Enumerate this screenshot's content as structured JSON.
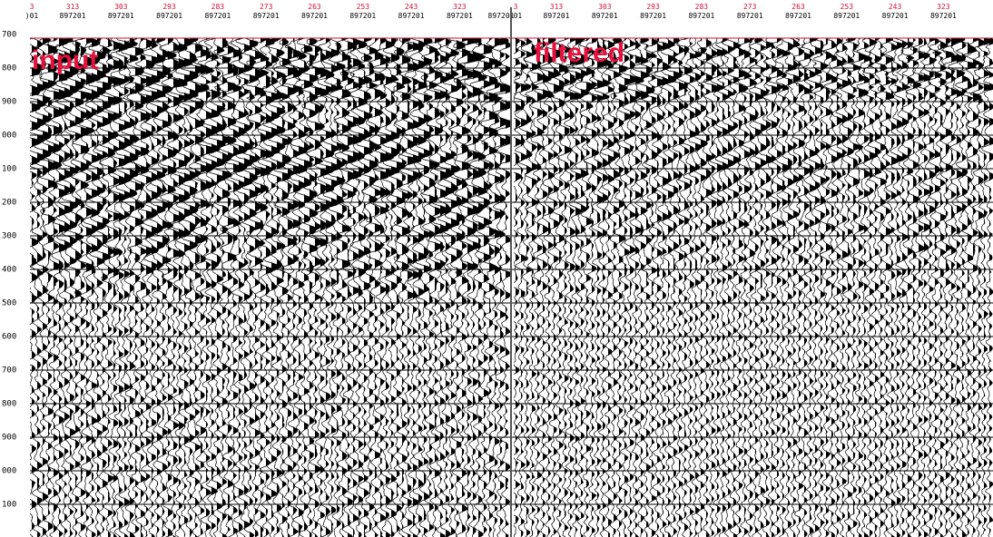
{
  "panels": [
    {
      "label": "input",
      "traces": [
        {
          "number": "3",
          "id": ")01"
        },
        {
          "number": "313",
          "id": "897201"
        },
        {
          "number": "303",
          "id": "897201"
        },
        {
          "number": "293",
          "id": "897201"
        },
        {
          "number": "283",
          "id": "897201"
        },
        {
          "number": "273",
          "id": "897201"
        },
        {
          "number": "263",
          "id": "897201"
        },
        {
          "number": "253",
          "id": "897201"
        },
        {
          "number": "243",
          "id": "897201"
        },
        {
          "number": "323",
          "id": "897201"
        }
      ]
    },
    {
      "label": "filtered",
      "traces": [
        {
          "number": "3",
          "id": ")01"
        },
        {
          "number": "313",
          "id": "897201"
        },
        {
          "number": "303",
          "id": "897201"
        },
        {
          "number": "293",
          "id": "897201"
        },
        {
          "number": "283",
          "id": "897201"
        },
        {
          "number": "273",
          "id": "897201"
        },
        {
          "number": "263",
          "id": "897201"
        },
        {
          "number": "253",
          "id": "897201"
        },
        {
          "number": "243",
          "id": "897201"
        },
        {
          "number": "323",
          "id": "897201"
        }
      ]
    }
  ],
  "divider_id": "897201",
  "time_labels": [
    "700",
    "800",
    "900",
    "000",
    "100",
    "200",
    "300",
    "400",
    "500",
    "600",
    "700",
    "800",
    "900",
    "000",
    "100"
  ]
}
